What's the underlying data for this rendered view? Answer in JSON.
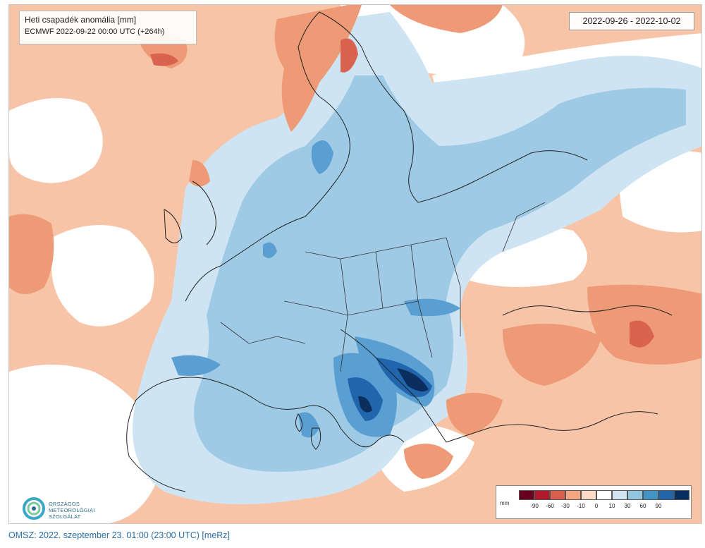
{
  "map": {
    "title_line1": "Heti csapadék anomália [mm]",
    "title_line2": "ECMWF 2022-09-22 00:00 UTC  (+264h)",
    "date_range": "2022-09-26 - 2022-10-02"
  },
  "logo": {
    "line1": "ORSZÁGOS",
    "line2": "METEOROLÓGIAI",
    "line3": "SZOLGÁLAT"
  },
  "legend": {
    "unit": "mm",
    "colors": [
      "#67001f",
      "#b2182b",
      "#d6604d",
      "#f4a582",
      "#fddbc7",
      "#ffffff",
      "#d1e5f0",
      "#92c5de",
      "#4393c3",
      "#2166ac",
      "#053061"
    ],
    "labels": [
      "-90",
      "-60",
      "-30",
      "-10",
      "0",
      "10",
      "30",
      "60",
      "90"
    ]
  },
  "footer": {
    "text": "OMSZ: 2022. szeptember 23. 01:00 (23:00  UTC)  [meRz]"
  },
  "colors": {
    "dry_light": "#f8c4a8",
    "dry_medium": "#ee9a76",
    "dry_strong": "#d9634f",
    "wet_light": "#cfe4f2",
    "wet_medium": "#9fcae6",
    "wet_strong": "#5a9fd2",
    "wet_heavy": "#2166ac",
    "wet_extreme": "#0b2e5e"
  }
}
